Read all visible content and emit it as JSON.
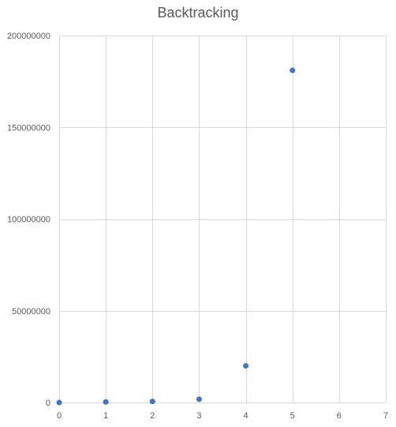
{
  "chart_data": {
    "type": "scatter",
    "title": "Backtracking",
    "xlabel": "",
    "ylabel": "",
    "xlim": [
      0,
      7
    ],
    "ylim": [
      0,
      200000000
    ],
    "x_ticks": [
      0,
      1,
      2,
      3,
      4,
      5,
      6,
      7
    ],
    "y_ticks": [
      0,
      50000000,
      100000000,
      150000000,
      200000000
    ],
    "x_tick_labels": [
      "0",
      "1",
      "2",
      "3",
      "4",
      "5",
      "6",
      "7"
    ],
    "y_tick_labels": [
      "0",
      "50000000",
      "100000000",
      "150000000",
      "200000000"
    ],
    "grid": true,
    "series": [
      {
        "name": "Backtracking",
        "color": "#4472c4",
        "x": [
          0,
          1,
          2,
          3,
          4,
          5
        ],
        "y": [
          0,
          300000,
          600000,
          1800000,
          20000000,
          181000000
        ]
      }
    ]
  }
}
